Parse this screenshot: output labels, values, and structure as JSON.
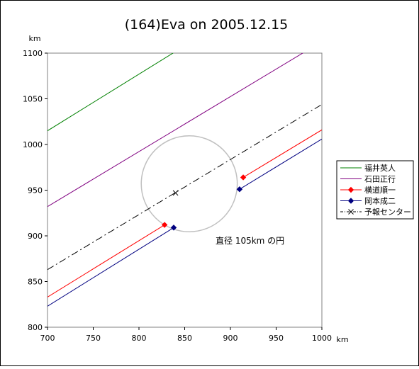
{
  "chart_data": {
    "type": "line",
    "title": "(164)Eva on 2005.12.15",
    "xlabel": "km",
    "ylabel": "km",
    "xlim": [
      700,
      1000
    ],
    "ylim": [
      800,
      1100
    ],
    "xticks": [
      700,
      750,
      800,
      850,
      900,
      950,
      1000
    ],
    "yticks": [
      800,
      850,
      900,
      950,
      1000,
      1050,
      1100
    ],
    "grid": false,
    "legend_position": "right",
    "annotation": "直径 105km の円",
    "circle": {
      "center": [
        855,
        957
      ],
      "diameter": 105,
      "color": "#c0c0c0"
    },
    "series": [
      {
        "name": "福井英人",
        "color": "#008000",
        "style": "solid",
        "marker": "none",
        "segments": [
          [
            [
              700,
              1015
            ],
            [
              842,
              1103
            ]
          ]
        ]
      },
      {
        "name": "石田正行",
        "color": "#800080",
        "style": "solid",
        "marker": "none",
        "segments": [
          [
            [
              700,
              932
            ],
            [
              984,
              1103
            ]
          ]
        ]
      },
      {
        "name": "横道順一",
        "color": "#ff0000",
        "style": "solid",
        "marker": "diamond",
        "segments": [
          [
            [
              700,
              833
            ],
            [
              828,
              912
            ]
          ],
          [
            [
              914,
              964
            ],
            [
              1000,
              1016
            ]
          ]
        ]
      },
      {
        "name": "岡本成二",
        "color": "#000080",
        "style": "solid",
        "marker": "diamond",
        "segments": [
          [
            [
              700,
              823
            ],
            [
              838,
              909
            ]
          ],
          [
            [
              910,
              951
            ],
            [
              1000,
              1006
            ]
          ]
        ]
      },
      {
        "name": "予報センター",
        "color": "#000000",
        "style": "dashdot",
        "marker": "x",
        "segments": [
          [
            [
              700,
              863
            ],
            [
              1002,
              1045
            ]
          ]
        ],
        "marker_points": [
          [
            840,
            947
          ]
        ]
      }
    ]
  }
}
